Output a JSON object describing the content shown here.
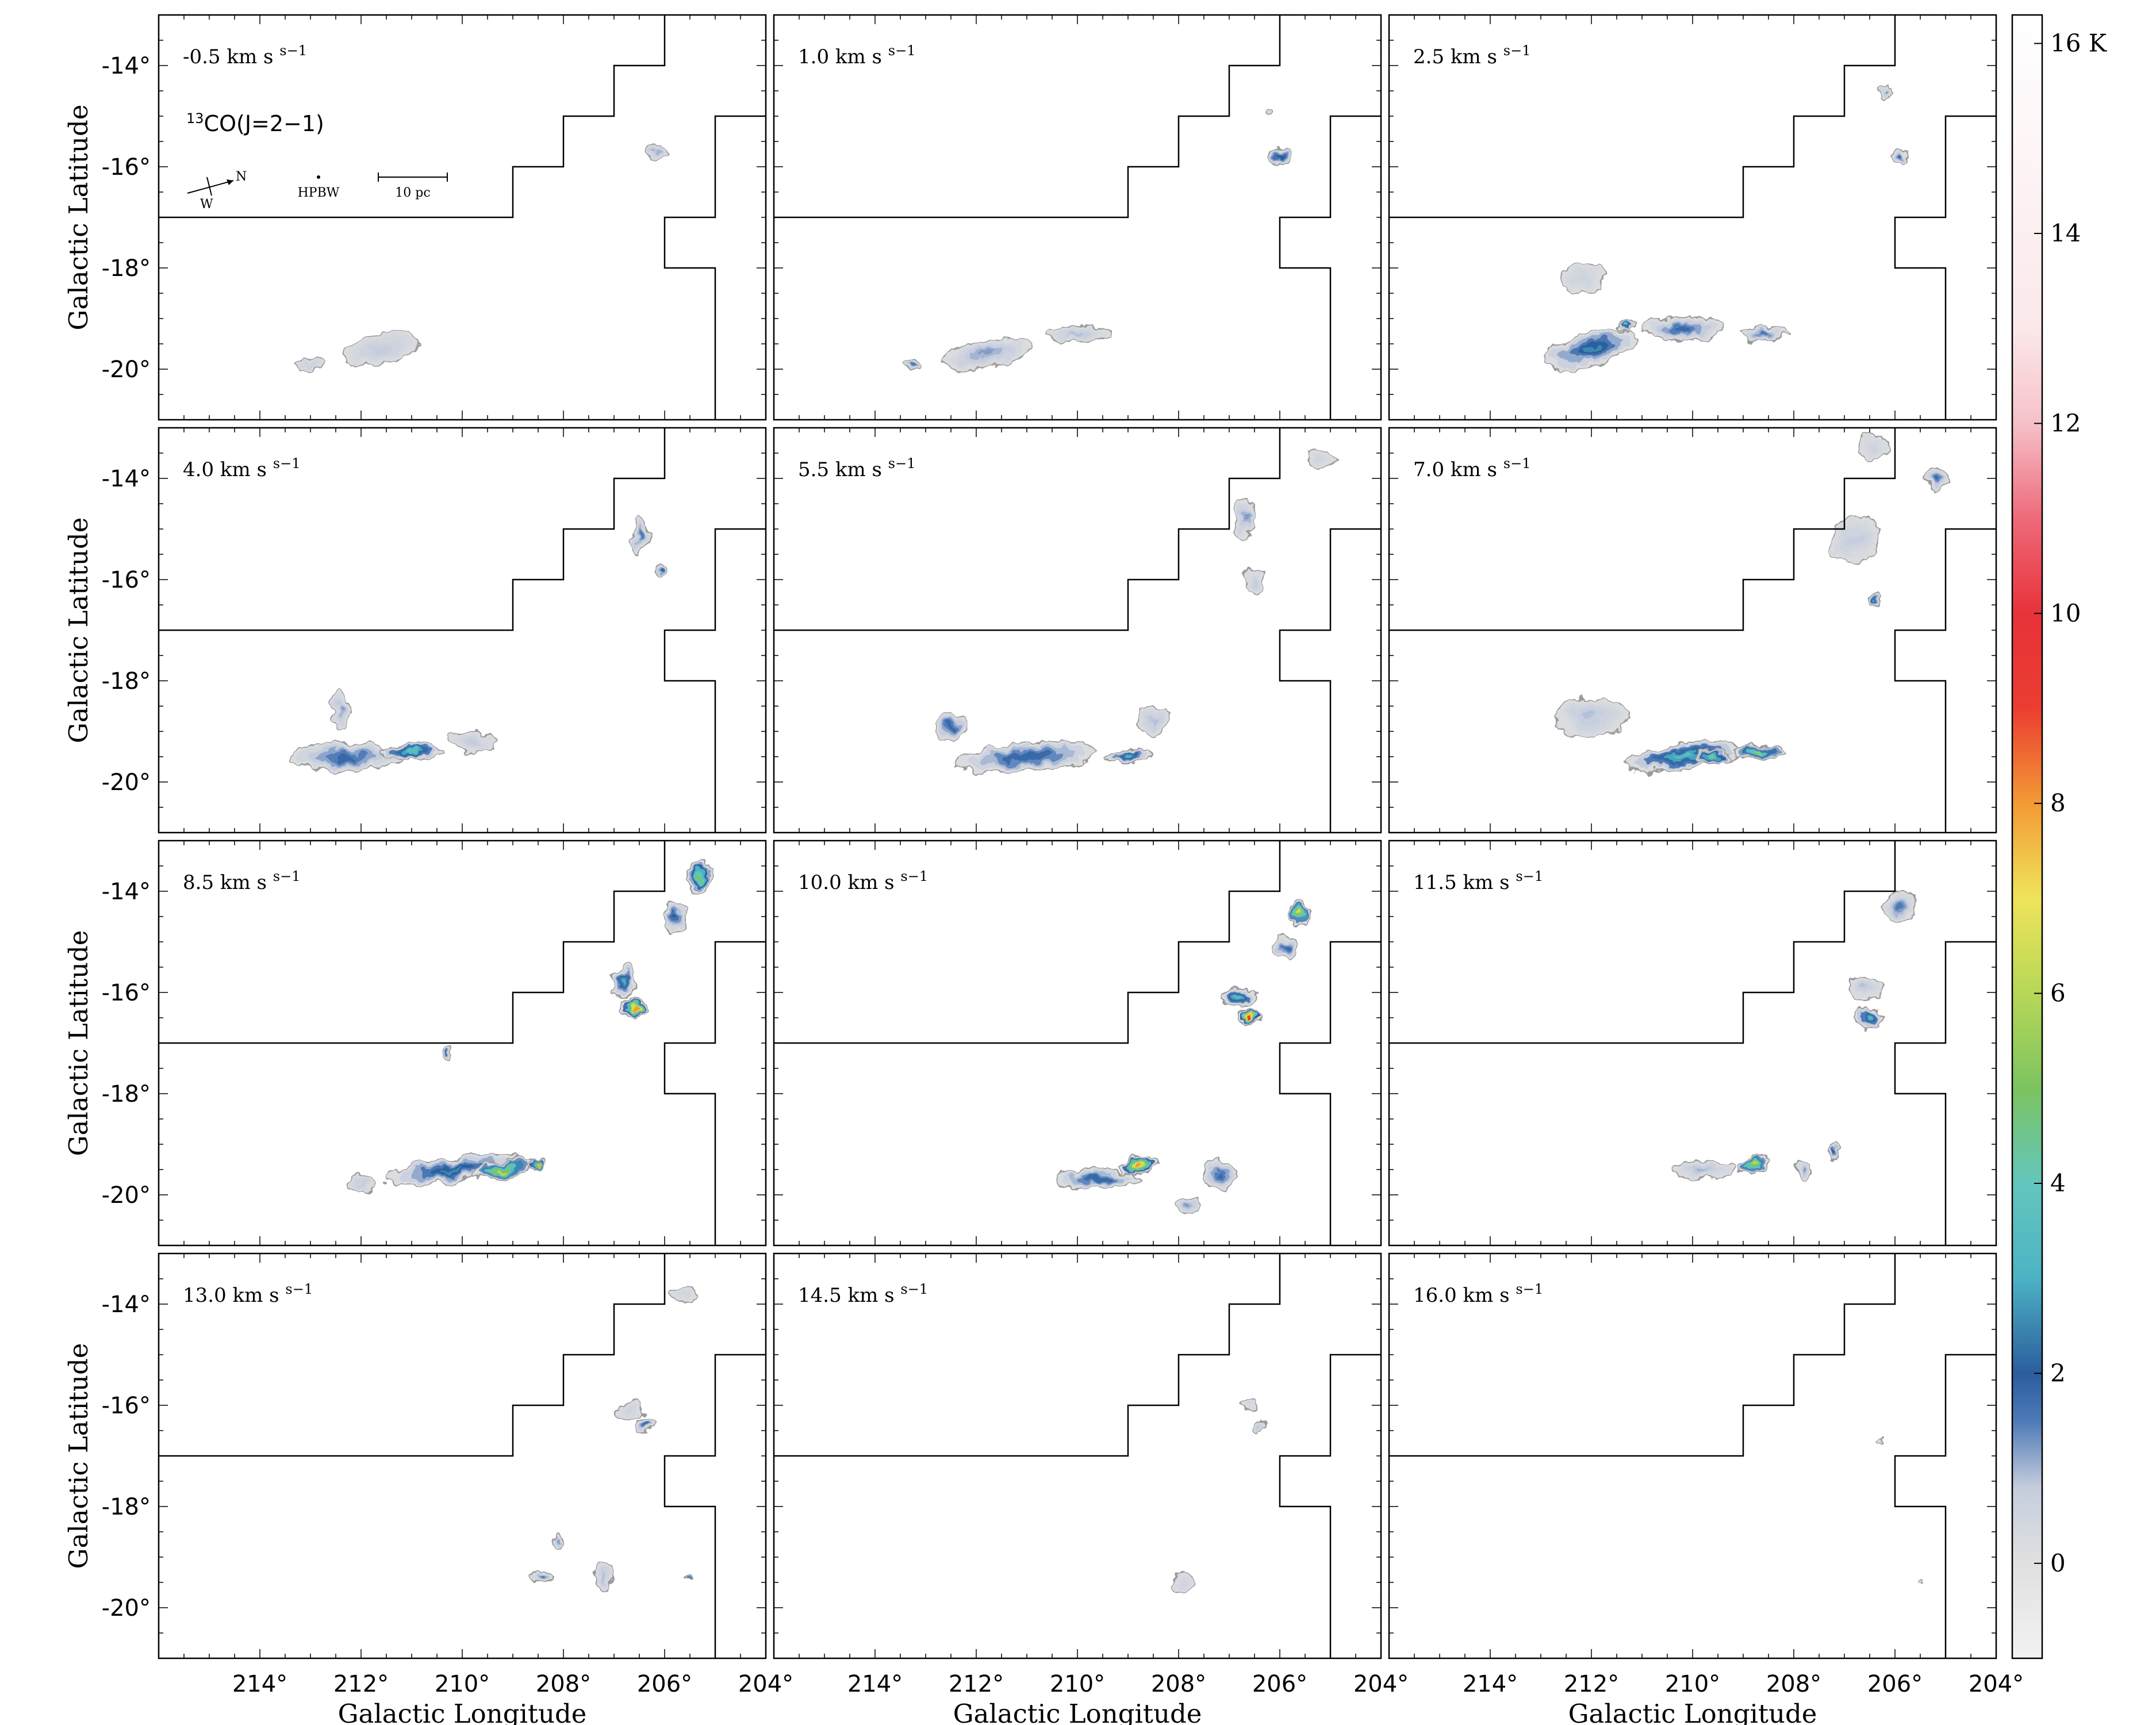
{
  "chart_data": {
    "type": "heatmap",
    "title": "",
    "xlabel": "Galactic Longitude",
    "ylabel": "Galactic Latitude",
    "xlim": [
      216,
      204
    ],
    "ylim": [
      -21,
      -13
    ],
    "x_ticks": [
      214,
      212,
      210,
      208,
      206,
      204
    ],
    "x_tick_labels": [
      "214°",
      "212°",
      "210°",
      "208°",
      "206°",
      "204°"
    ],
    "y_ticks": [
      -14,
      -16,
      -18,
      -20
    ],
    "y_tick_labels": [
      "-14°",
      "-16°",
      "-18°",
      "-20°"
    ],
    "molecule_label": "CO(J=2−1)",
    "molecule_superscript": "13",
    "annotations": {
      "north": "N",
      "west": "W",
      "beam": "HPBW",
      "scale_bar": "10 pc"
    },
    "velocity_unit": "km s",
    "velocity_exponent": "−1",
    "panels": [
      {
        "velocity": "-0.5",
        "peak_K": 1.2,
        "clumps": [
          [
            211.6,
            -19.6,
            1.5,
            0.6,
            0.8,
            -10
          ],
          [
            206.2,
            -15.7,
            0.35,
            0.25,
            1.0,
            0
          ],
          [
            213.0,
            -19.9,
            0.6,
            0.2,
            0.6,
            0
          ]
        ]
      },
      {
        "velocity": "1.0",
        "peak_K": 2.0,
        "clumps": [
          [
            211.8,
            -19.7,
            1.8,
            0.55,
            1.2,
            -10
          ],
          [
            210.0,
            -19.3,
            1.2,
            0.3,
            0.9,
            0
          ],
          [
            206.0,
            -15.8,
            0.35,
            0.3,
            2.0,
            0
          ],
          [
            206.2,
            -14.9,
            0.2,
            0.15,
            0.5,
            0
          ],
          [
            213.3,
            -19.9,
            0.3,
            0.2,
            1.5,
            0
          ]
        ]
      },
      {
        "velocity": "2.5",
        "peak_K": 3.5,
        "clumps": [
          [
            212.0,
            -19.6,
            1.9,
            0.6,
            2.5,
            -15
          ],
          [
            210.2,
            -19.2,
            1.6,
            0.5,
            1.8,
            0
          ],
          [
            211.3,
            -19.1,
            0.4,
            0.25,
            3.5,
            0
          ],
          [
            208.6,
            -19.3,
            0.9,
            0.3,
            1.5,
            0
          ],
          [
            212.2,
            -18.2,
            0.8,
            0.6,
            0.6,
            0
          ],
          [
            206.2,
            -14.5,
            0.3,
            0.3,
            1.2,
            0
          ],
          [
            205.9,
            -15.8,
            0.35,
            0.35,
            1.8,
            0
          ]
        ]
      },
      {
        "velocity": "4.0",
        "peak_K": 4.0,
        "clumps": [
          [
            212.3,
            -19.5,
            2.3,
            0.55,
            1.8,
            0
          ],
          [
            211.0,
            -19.4,
            1.2,
            0.3,
            3.5,
            0
          ],
          [
            212.4,
            -18.6,
            0.4,
            0.7,
            1.2,
            0
          ],
          [
            209.8,
            -19.2,
            1.0,
            0.4,
            0.8,
            0
          ],
          [
            206.5,
            -15.1,
            0.3,
            0.8,
            1.5,
            0
          ],
          [
            206.1,
            -15.8,
            0.2,
            0.25,
            1.8,
            0
          ]
        ]
      },
      {
        "velocity": "5.5",
        "peak_K": 3.5,
        "clumps": [
          [
            211.0,
            -19.5,
            2.8,
            0.55,
            2.2,
            -5
          ],
          [
            212.5,
            -18.9,
            0.6,
            0.6,
            1.8,
            0
          ],
          [
            209.0,
            -19.5,
            0.9,
            0.3,
            3.0,
            0
          ],
          [
            208.5,
            -18.8,
            0.6,
            0.6,
            0.9,
            0
          ],
          [
            206.7,
            -14.8,
            0.35,
            0.8,
            1.2,
            0
          ],
          [
            206.5,
            -16.0,
            0.4,
            0.5,
            0.8,
            0
          ],
          [
            205.2,
            -13.6,
            0.6,
            0.4,
            0.5,
            0
          ]
        ]
      },
      {
        "velocity": "7.0",
        "peak_K": 5.5,
        "clumps": [
          [
            210.2,
            -19.5,
            2.3,
            0.5,
            3.5,
            -8
          ],
          [
            212.0,
            -18.7,
            1.4,
            0.8,
            0.9,
            0
          ],
          [
            208.7,
            -19.4,
            1.0,
            0.3,
            5.5,
            0
          ],
          [
            209.6,
            -19.5,
            0.6,
            0.25,
            4.5,
            0
          ],
          [
            206.8,
            -15.2,
            1.0,
            0.9,
            0.8,
            0
          ],
          [
            206.4,
            -16.4,
            0.3,
            0.25,
            2.8,
            0
          ],
          [
            205.2,
            -14.0,
            0.5,
            0.5,
            1.8,
            0
          ],
          [
            206.4,
            -13.4,
            0.6,
            0.5,
            0.6,
            0
          ]
        ]
      },
      {
        "velocity": "8.5",
        "peak_K": 8.0,
        "clumps": [
          [
            210.2,
            -19.5,
            2.6,
            0.5,
            2.5,
            -8
          ],
          [
            209.2,
            -19.5,
            1.2,
            0.35,
            6.0,
            -12
          ],
          [
            208.5,
            -19.4,
            0.4,
            0.2,
            8.0,
            0
          ],
          [
            206.6,
            -16.3,
            0.6,
            0.35,
            8.0,
            0
          ],
          [
            206.8,
            -15.8,
            0.5,
            0.6,
            3.0,
            0
          ],
          [
            205.3,
            -13.7,
            0.5,
            0.6,
            5.0,
            0
          ],
          [
            205.8,
            -14.5,
            0.4,
            0.6,
            2.0,
            0
          ],
          [
            212.0,
            -19.8,
            0.5,
            0.3,
            0.8,
            0
          ],
          [
            210.3,
            -17.2,
            0.2,
            0.2,
            1.5,
            0
          ]
        ]
      },
      {
        "velocity": "10.0",
        "peak_K": 10.0,
        "clumps": [
          [
            208.8,
            -19.4,
            0.8,
            0.35,
            8.0,
            -10
          ],
          [
            209.6,
            -19.7,
            1.6,
            0.4,
            2.2,
            0
          ],
          [
            206.6,
            -16.5,
            0.5,
            0.3,
            9.0,
            0
          ],
          [
            206.8,
            -16.1,
            0.8,
            0.4,
            3.5,
            0
          ],
          [
            205.6,
            -14.4,
            0.4,
            0.5,
            6.5,
            0
          ],
          [
            205.9,
            -15.1,
            0.4,
            0.5,
            1.8,
            0
          ],
          [
            207.2,
            -19.6,
            0.6,
            0.6,
            1.8,
            0
          ],
          [
            207.8,
            -20.2,
            0.5,
            0.3,
            1.2,
            0
          ]
        ]
      },
      {
        "velocity": "11.5",
        "peak_K": 6.0,
        "clumps": [
          [
            208.8,
            -19.4,
            0.7,
            0.3,
            6.0,
            -10
          ],
          [
            209.8,
            -19.5,
            1.2,
            0.4,
            1.0,
            0
          ],
          [
            206.5,
            -16.5,
            0.6,
            0.4,
            3.5,
            0
          ],
          [
            206.6,
            -15.9,
            0.7,
            0.5,
            0.9,
            0
          ],
          [
            205.9,
            -14.3,
            0.6,
            0.6,
            1.5,
            0
          ],
          [
            207.2,
            -19.2,
            0.2,
            0.4,
            2.0,
            0
          ],
          [
            207.8,
            -19.5,
            0.3,
            0.4,
            1.2,
            0
          ]
        ]
      },
      {
        "velocity": "13.0",
        "peak_K": 2.0,
        "clumps": [
          [
            208.4,
            -19.4,
            0.5,
            0.2,
            1.5,
            0
          ],
          [
            207.2,
            -19.4,
            0.3,
            0.6,
            0.9,
            0
          ],
          [
            206.4,
            -16.4,
            0.4,
            0.3,
            1.8,
            0
          ],
          [
            206.7,
            -16.1,
            0.5,
            0.35,
            0.6,
            0
          ],
          [
            205.6,
            -13.8,
            0.5,
            0.35,
            0.5,
            0
          ],
          [
            205.5,
            -19.4,
            0.1,
            0.1,
            1.5,
            0
          ],
          [
            208.1,
            -18.7,
            0.15,
            0.3,
            1.2,
            0
          ]
        ]
      },
      {
        "velocity": "14.5",
        "peak_K": 1.0,
        "clumps": [
          [
            207.9,
            -19.5,
            0.5,
            0.4,
            0.5,
            0
          ],
          [
            206.4,
            -16.4,
            0.2,
            0.2,
            0.8,
            0
          ],
          [
            206.6,
            -16.0,
            0.3,
            0.2,
            0.4,
            0
          ]
        ]
      },
      {
        "velocity": "16.0",
        "peak_K": 0.3,
        "clumps": [
          [
            205.5,
            -19.5,
            0.1,
            0.1,
            0.3,
            0
          ],
          [
            206.3,
            -16.7,
            0.1,
            0.1,
            0.2,
            0
          ]
        ]
      }
    ],
    "survey_boundary_lb": [
      [
        216,
        -17
      ],
      [
        209,
        -17
      ],
      [
        209,
        -16
      ],
      [
        208,
        -16
      ],
      [
        208,
        -15
      ],
      [
        207,
        -15
      ],
      [
        207,
        -14
      ],
      [
        206,
        -14
      ],
      [
        206,
        -13
      ]
    ],
    "survey_boundary_right_lb": [
      [
        204,
        -15
      ],
      [
        205,
        -15
      ],
      [
        205,
        -17
      ],
      [
        206,
        -17
      ],
      [
        206,
        -18
      ],
      [
        205,
        -18
      ],
      [
        205,
        -21
      ]
    ],
    "colorbar": {
      "vmin": -1,
      "vmax": 16.3,
      "ticks": [
        0,
        2,
        4,
        6,
        8,
        10,
        12,
        14,
        16
      ],
      "tick_labels": [
        "0",
        "2",
        "4",
        "6",
        "8",
        "10",
        "12",
        "14",
        "16 K"
      ],
      "stops": [
        [
          -1,
          "#f2f2f2"
        ],
        [
          0,
          "#e0e0e0"
        ],
        [
          0.8,
          "#c5cddd"
        ],
        [
          1.5,
          "#4e79b7"
        ],
        [
          2.0,
          "#2b5d9e"
        ],
        [
          3.0,
          "#4cb3c4"
        ],
        [
          4.0,
          "#63c6bd"
        ],
        [
          5.0,
          "#7cc460"
        ],
        [
          6.0,
          "#b7d757"
        ],
        [
          7.0,
          "#efe45a"
        ],
        [
          8.0,
          "#f39a35"
        ],
        [
          9.0,
          "#eb3d31"
        ],
        [
          10.0,
          "#e8323a"
        ],
        [
          11.0,
          "#ee6a7a"
        ],
        [
          12.0,
          "#f6c1c9"
        ],
        [
          13.0,
          "#fbe8ea"
        ],
        [
          16.3,
          "#ffffff"
        ]
      ]
    }
  }
}
